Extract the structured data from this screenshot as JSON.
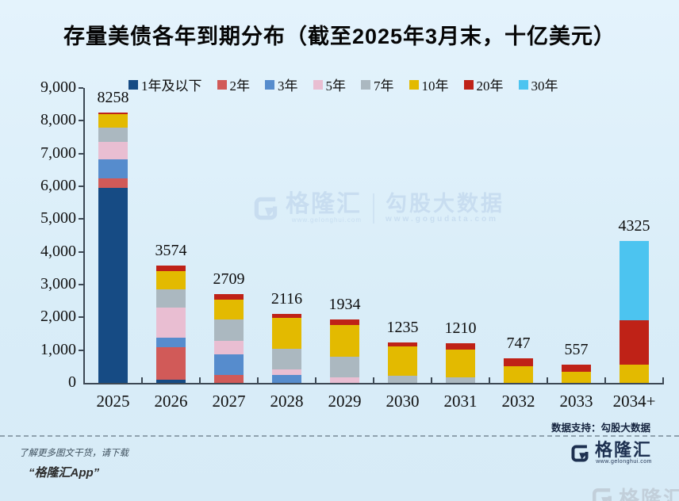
{
  "title": "存量美债各年到期分布（截至2025年3月末，十亿美元）",
  "watermark": {
    "brand": "格隆汇",
    "brand_url": "www.gelonghui.com",
    "partner": "勾股大数据",
    "partner_url": "www.gogudata.com"
  },
  "footer": {
    "data_support": "数据支持：勾股大数据",
    "promo_line1": "了解更多图文干货，请下载",
    "promo_line2": "“格隆汇App”",
    "brand": "格隆汇",
    "brand_url": "www.gelonghui.com"
  },
  "chart_data": {
    "type": "bar",
    "stacked": true,
    "title": "存量美债各年到期分布（截至2025年3月末，十亿美元）",
    "unit": "十亿美元",
    "categories": [
      "2025",
      "2026",
      "2027",
      "2028",
      "2029",
      "2030",
      "2031",
      "2032",
      "2033",
      "2034+"
    ],
    "totals": [
      8258,
      3574,
      2709,
      2116,
      1934,
      1235,
      1210,
      747,
      557,
      4325
    ],
    "series": [
      {
        "name": "1年及以下",
        "color": "#164b84",
        "values": [
          5960,
          100,
          0,
          0,
          0,
          0,
          0,
          0,
          0,
          0
        ]
      },
      {
        "name": "2年",
        "color": "#d15a58",
        "values": [
          280,
          1000,
          250,
          0,
          0,
          0,
          0,
          0,
          0,
          0
        ]
      },
      {
        "name": "3年",
        "color": "#568ccd",
        "values": [
          590,
          270,
          620,
          250,
          0,
          0,
          0,
          0,
          0,
          0
        ]
      },
      {
        "name": "5年",
        "color": "#e9bed2",
        "values": [
          535,
          930,
          410,
          165,
          170,
          0,
          0,
          0,
          0,
          0
        ]
      },
      {
        "name": "7年",
        "color": "#abb8c0",
        "values": [
          430,
          550,
          660,
          620,
          640,
          230,
          165,
          0,
          0,
          0
        ]
      },
      {
        "name": "10年",
        "color": "#e3ba00",
        "values": [
          400,
          560,
          600,
          960,
          950,
          880,
          860,
          510,
          330,
          560
        ]
      },
      {
        "name": "20年",
        "color": "#bf2217",
        "values": [
          63,
          164,
          169,
          121,
          174,
          125,
          185,
          237,
          227,
          1360
        ]
      },
      {
        "name": "30年",
        "color": "#4cc4f0",
        "values": [
          0,
          0,
          0,
          0,
          0,
          0,
          0,
          0,
          0,
          2405
        ]
      }
    ],
    "ylim": [
      0,
      9000
    ],
    "ytick_step": 1000,
    "ytick_labels": [
      "0",
      "1,000",
      "2,000",
      "3,000",
      "4,000",
      "5,000",
      "6,000",
      "7,000",
      "8,000",
      "9,000"
    ],
    "xlabel": "",
    "ylabel": "",
    "grid": false,
    "legend_position": "top"
  }
}
